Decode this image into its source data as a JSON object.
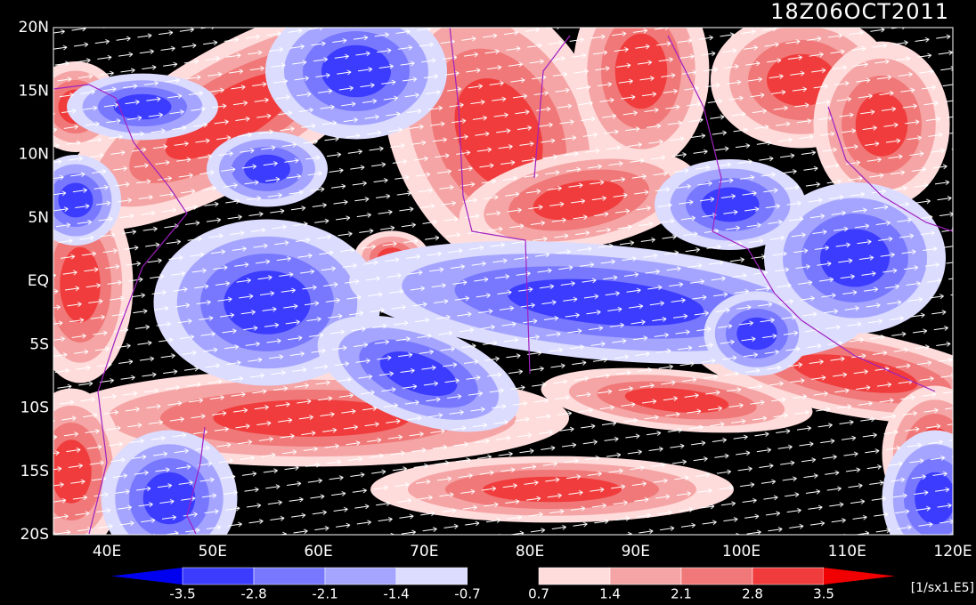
{
  "title": "18Z06OCT2011",
  "lat_labels": [
    "20N",
    "15N",
    "10N",
    "5N",
    "EQ",
    "5S",
    "10S",
    "15S",
    "20S"
  ],
  "lon_labels": [
    "40E",
    "50E",
    "60E",
    "70E",
    "80E",
    "90E",
    "100E",
    "110E",
    "120E"
  ],
  "colorbar": {
    "levels": [
      -3.5,
      -2.8,
      -2.1,
      -1.4,
      -0.7,
      0.7,
      1.4,
      2.1,
      2.8,
      3.5
    ],
    "colors": [
      "#0000f0",
      "#3c3cff",
      "#7878ff",
      "#a5a5ff",
      "#dcdcff",
      "#000000",
      "#ffdcdc",
      "#f5a5a5",
      "#f07878",
      "#f03c3c",
      "#f00000"
    ],
    "unit": "[1/sx1.E5]"
  }
}
